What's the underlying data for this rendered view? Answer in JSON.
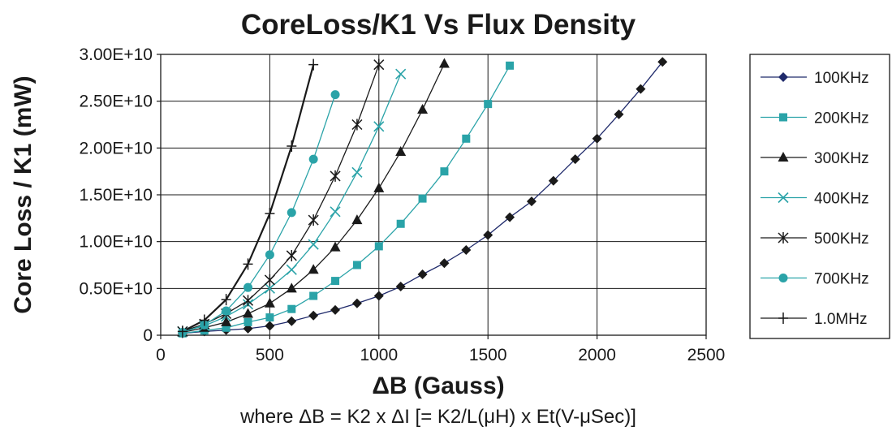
{
  "chart_data": {
    "type": "line",
    "title": "CoreLoss/K1 Vs Flux Density",
    "xlabel": "ΔB (Gauss)",
    "ylabel": "Core Loss / K1 (mW)",
    "note": "where ΔB = K2 x ΔI [= K2/L(μH) x Et(V-μSec)]",
    "xlim": [
      0,
      2500
    ],
    "ylim": [
      0,
      30000000000
    ],
    "xticks": [
      "0",
      "500",
      "1000",
      "1500",
      "2000",
      "2500"
    ],
    "yticks": [
      "0",
      "0.50E+10",
      "1.00E+10",
      "1.50E+10",
      "2.00E+10",
      "2.50E+10",
      "3.00E+10"
    ],
    "grid": true,
    "legend_position": "right",
    "series": [
      {
        "name": "100KHz",
        "color": "#1a1a1a",
        "line_color": "#1f2a6b",
        "marker": "diamond",
        "legend_marker_color": "#1f2a6b",
        "x": [
          100,
          200,
          300,
          400,
          500,
          600,
          700,
          800,
          900,
          1000,
          1100,
          1200,
          1300,
          1400,
          1500,
          1600,
          1700,
          1800,
          1900,
          2000,
          2100,
          2200,
          2300
        ],
        "y": [
          200000000.0,
          400000000.0,
          550000000.0,
          700000000.0,
          1000000000.0,
          1500000000.0,
          2100000000.0,
          2700000000.0,
          3400000000.0,
          4200000000.0,
          5200000000.0,
          6500000000.0,
          7700000000.0,
          9100000000.0,
          10700000000.0,
          12600000000.0,
          14300000000.0,
          16500000000.0,
          18800000000.0,
          21000000000.0,
          23600000000.0,
          26300000000.0,
          29200000000.0
        ]
      },
      {
        "name": "200KHz",
        "color": "#2aa3a8",
        "line_color": "#2aa3a8",
        "marker": "square",
        "x": [
          100,
          200,
          300,
          400,
          500,
          600,
          700,
          800,
          900,
          1000,
          1100,
          1200,
          1300,
          1400,
          1500,
          1600
        ],
        "y": [
          200000000.0,
          500000000.0,
          800000000.0,
          1400000000.0,
          1900000000.0,
          2800000000.0,
          4200000000.0,
          5800000000.0,
          7500000000.0,
          9500000000.0,
          11900000000.0,
          14600000000.0,
          17500000000.0,
          21000000000.0,
          24700000000.0,
          28800000000.0
        ]
      },
      {
        "name": "300KHz",
        "color": "#1a1a1a",
        "line_color": "#1a1a1a",
        "marker": "triangle",
        "x": [
          100,
          200,
          300,
          400,
          500,
          600,
          700,
          800,
          900,
          1000,
          1100,
          1200,
          1300
        ],
        "y": [
          300000000.0,
          800000000.0,
          1400000000.0,
          2300000000.0,
          3400000000.0,
          5000000000.0,
          7000000000.0,
          9400000000.0,
          12300000000.0,
          15700000000.0,
          19600000000.0,
          24100000000.0,
          29000000000.0
        ]
      },
      {
        "name": "400KHz",
        "color": "#2aa3a8",
        "line_color": "#2aa3a8",
        "marker": "x",
        "x": [
          100,
          200,
          300,
          400,
          500,
          600,
          700,
          800,
          900,
          1000,
          1100
        ],
        "y": [
          400000000.0,
          1000000000.0,
          2000000000.0,
          3300000000.0,
          5000000000.0,
          7000000000.0,
          9700000000.0,
          13200000000.0,
          17400000000.0,
          22300000000.0,
          27900000000.0
        ]
      },
      {
        "name": "500KHz",
        "color": "#1a1a1a",
        "line_color": "#1a1a1a",
        "marker": "asterisk",
        "x": [
          100,
          200,
          300,
          400,
          500,
          600,
          700,
          800,
          900,
          1000
        ],
        "y": [
          400000000.0,
          1200000000.0,
          2300000000.0,
          3700000000.0,
          5900000000.0,
          8500000000.0,
          12300000000.0,
          17000000000.0,
          22500000000.0,
          28900000000.0
        ]
      },
      {
        "name": "700KHz",
        "color": "#2aa3a8",
        "line_color": "#2aa3a8",
        "marker": "circle",
        "x": [
          100,
          200,
          300,
          400,
          500,
          600,
          700,
          800
        ],
        "y": [
          300000000.0,
          1100000000.0,
          2600000000.0,
          5100000000.0,
          8600000000.0,
          13100000000.0,
          18800000000.0,
          25700000000.0
        ]
      },
      {
        "name": "1.0MHz",
        "color": "#1a1a1a",
        "line_color": "#1a1a1a",
        "marker": "plus",
        "x": [
          100,
          200,
          300,
          400,
          500,
          600,
          700
        ],
        "y": [
          400000000.0,
          1600000000.0,
          3800000000.0,
          7600000000.0,
          13000000000.0,
          20200000000.0,
          28900000000.0
        ]
      }
    ]
  }
}
